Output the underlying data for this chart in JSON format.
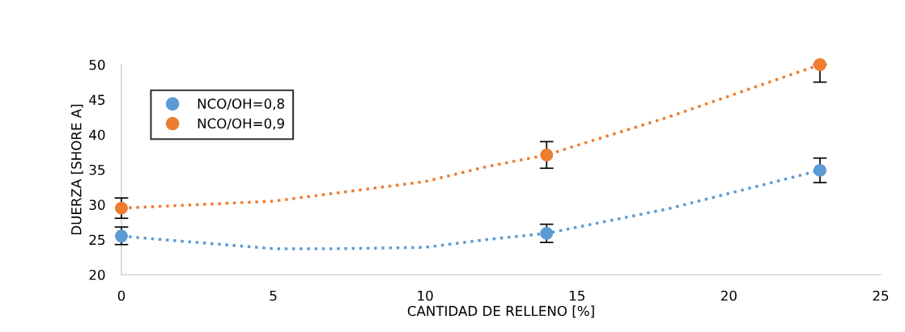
{
  "chart_data": {
    "type": "scatter",
    "xlabel": "CANTIDAD DE RELLENO [%]",
    "ylabel": "DUERZA [SHORE A]",
    "xlim": [
      0,
      25
    ],
    "xticks": [
      0,
      5,
      10,
      15,
      20,
      25
    ],
    "ylim": [
      20,
      50
    ],
    "yticks": [
      20,
      25,
      30,
      35,
      40,
      45,
      50
    ],
    "grid": false,
    "legend": "top left",
    "marker": "circle",
    "series": [
      {
        "name": "NCO/OH=0,8",
        "color": "#5b9bd5",
        "x": [
          0,
          14,
          23
        ],
        "values": [
          25.5,
          25.9,
          34.9
        ],
        "errors": [
          [
            24.3,
            26.8
          ],
          1.3,
          1.75
        ]
      },
      {
        "name": "NCO/OH=0,9",
        "color": "#ed7d31",
        "x": [
          0,
          14,
          23
        ],
        "values": [
          29.5,
          37.1,
          50.0
        ],
        "errors": [
          1.45,
          1.9,
          [
            47.5,
            50
          ]
        ]
      },
      {
        "type": "line",
        "line_style": "dotted",
        "marker": "none",
        "color": "#5b9bd5",
        "x": [
          0,
          5,
          7,
          10,
          12,
          14,
          18,
          23
        ],
        "values": [
          25.5,
          23.7,
          23.7,
          23.9,
          25.0,
          25.9,
          29.4,
          34.9
        ]
      },
      {
        "type": "line",
        "line_style": "dotted",
        "marker": "none",
        "color": "#ed7d31",
        "x": [
          0,
          5,
          10,
          12,
          14,
          18,
          23
        ],
        "values": [
          29.5,
          30.5,
          33.3,
          35.4,
          37.1,
          42.5,
          50.0
        ]
      }
    ]
  }
}
